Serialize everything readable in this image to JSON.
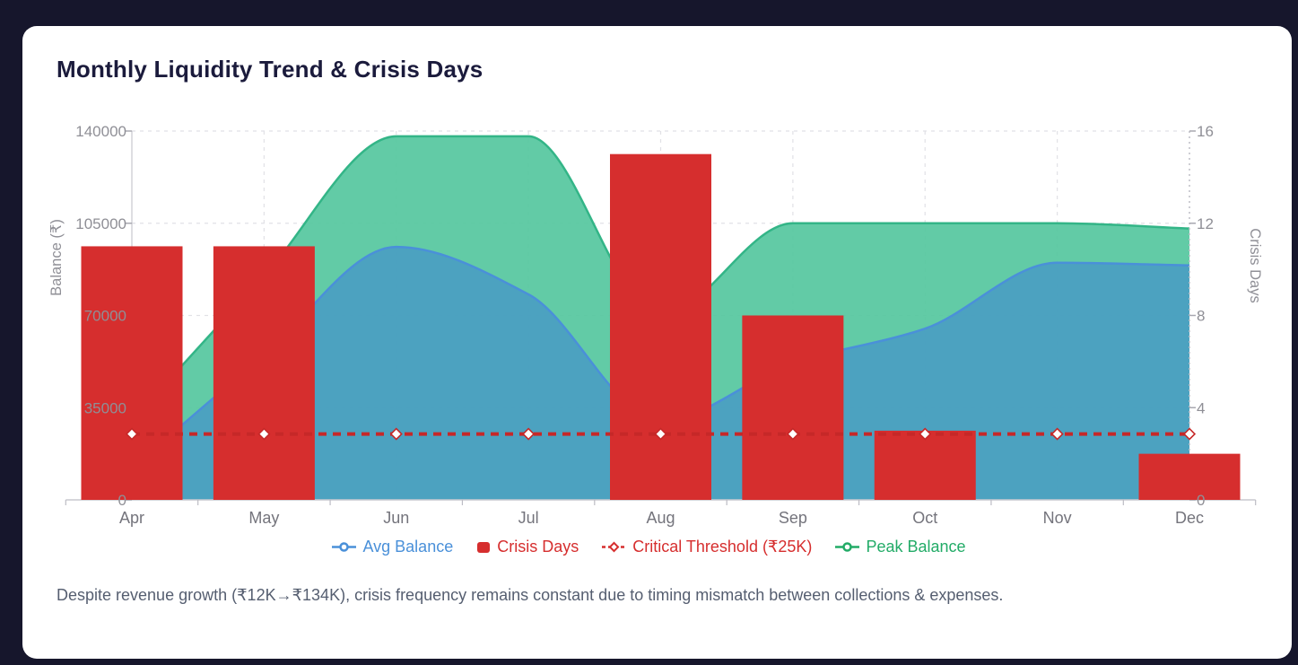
{
  "card": {
    "title": "Monthly Liquidity Trend & Crisis Days",
    "caption": "Despite revenue growth (₹12K→₹134K), crisis frequency remains constant due to timing mismatch between collections & expenses."
  },
  "legend": {
    "items": [
      {
        "label": "Avg Balance",
        "color": "#4a90d9",
        "marker": "line-circle"
      },
      {
        "label": "Crisis Days",
        "color": "#d62e2e",
        "marker": "square"
      },
      {
        "label": "Critical Threshold (₹25K)",
        "color": "#d62e2e",
        "marker": "dashed-line-diamond"
      },
      {
        "label": "Peak Balance",
        "color": "#22ab67",
        "marker": "line-circle"
      }
    ]
  },
  "chart_data": {
    "type": "mixed",
    "categories": [
      "Apr",
      "May",
      "Jun",
      "Jul",
      "Aug",
      "Sep",
      "Oct",
      "Nov",
      "Dec"
    ],
    "series": [
      {
        "name": "Peak Balance",
        "type": "area",
        "axis": "left",
        "color": "#55c79e",
        "line_color": "#33b587",
        "values": [
          30000,
          85000,
          138000,
          138000,
          70000,
          105000,
          105000,
          105000,
          103000
        ]
      },
      {
        "name": "Avg Balance",
        "type": "area",
        "axis": "left",
        "color": "#4696c8",
        "line_color": "#4a90d9",
        "values": [
          12000,
          55000,
          96000,
          78000,
          30000,
          52000,
          65000,
          90000,
          89000
        ]
      },
      {
        "name": "Crisis Days",
        "type": "bar",
        "axis": "right",
        "color": "#d62e2e",
        "values": [
          11,
          11,
          0,
          0,
          15,
          8,
          3,
          0,
          2
        ]
      },
      {
        "name": "Critical Threshold (₹25K)",
        "type": "dashed-line",
        "axis": "left",
        "color": "#c62828",
        "value": 25000
      }
    ],
    "left_axis": {
      "label": "Balance (₹)",
      "ticks": [
        0,
        35000,
        70000,
        105000,
        140000
      ],
      "range": [
        0,
        140000
      ]
    },
    "right_axis": {
      "label": "Crisis Days",
      "ticks": [
        0,
        4,
        8,
        12,
        16
      ],
      "range": [
        0,
        16
      ]
    },
    "grid": {
      "h_dashed": true,
      "v_dashed": true
    },
    "legend_position": "bottom",
    "title": "Monthly Liquidity Trend & Crisis Days"
  },
  "colors": {
    "page_background": "#16162c",
    "card_background": "#ffffff",
    "bar_red": "#d62e2e",
    "area_green": "#55c79e",
    "area_blue": "#4696c8",
    "threshold_red": "#c62828",
    "title_text": "#1b1b3c",
    "caption_text": "#555e70"
  }
}
